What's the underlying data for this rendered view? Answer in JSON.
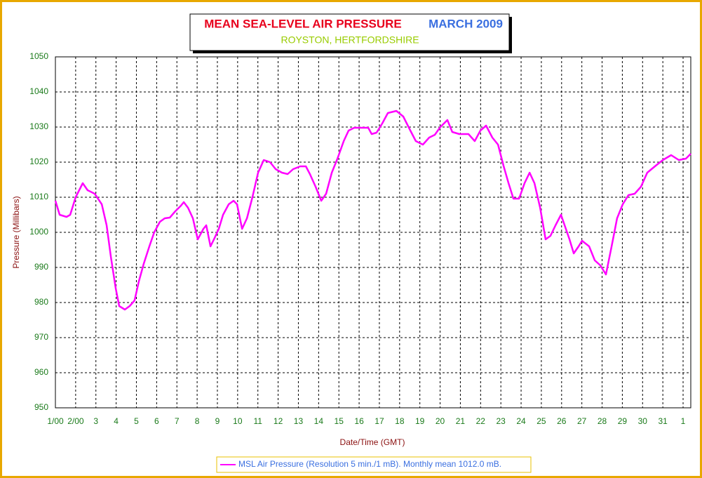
{
  "chart_data": {
    "type": "line",
    "title": "MEAN SEA-LEVEL AIR PRESSURE",
    "title_period": "MARCH 2009",
    "subtitle": "ROYSTON, HERTFORDSHIRE",
    "x_label": "Date/Time (GMT)",
    "y_label": "Pressure (Millibars)",
    "xlim": [
      1,
      32.38
    ],
    "ylim": [
      950,
      1050
    ],
    "xticks": [
      {
        "value": 1,
        "label": "1/00"
      },
      {
        "value": 2,
        "label": "2/00"
      },
      3,
      4,
      5,
      6,
      7,
      8,
      9,
      10,
      11,
      12,
      13,
      14,
      15,
      16,
      17,
      18,
      19,
      20,
      21,
      22,
      23,
      24,
      25,
      26,
      27,
      28,
      29,
      30,
      31,
      {
        "value": 32,
        "label": "1"
      }
    ],
    "yticks": [
      950,
      960,
      970,
      980,
      990,
      1000,
      1010,
      1020,
      1030,
      1040,
      1050
    ],
    "grid": true,
    "x": [
      1.0,
      1.21,
      1.55,
      1.73,
      2.0,
      2.35,
      2.59,
      2.94,
      3.29,
      3.53,
      3.74,
      3.98,
      4.15,
      4.43,
      4.67,
      4.91,
      5.12,
      5.36,
      5.64,
      5.88,
      6.16,
      6.4,
      6.65,
      6.92,
      7.2,
      7.34,
      7.55,
      7.79,
      8.03,
      8.31,
      8.45,
      8.66,
      8.83,
      9.07,
      9.28,
      9.56,
      9.8,
      9.97,
      10.22,
      10.46,
      10.73,
      11.01,
      11.29,
      11.6,
      11.88,
      12.19,
      12.47,
      12.74,
      13.09,
      13.37,
      13.57,
      13.85,
      14.13,
      14.37,
      14.65,
      14.93,
      15.24,
      15.48,
      15.76,
      16.1,
      16.45,
      16.62,
      16.86,
      17.14,
      17.42,
      17.84,
      18.18,
      18.53,
      18.8,
      19.15,
      19.46,
      19.74,
      20.01,
      20.36,
      20.6,
      20.95,
      21.4,
      21.71,
      21.99,
      22.27,
      22.58,
      22.86,
      23.13,
      23.38,
      23.62,
      23.9,
      24.17,
      24.42,
      24.66,
      24.94,
      25.21,
      25.45,
      25.7,
      25.97,
      26.15,
      26.39,
      26.6,
      26.84,
      27.01,
      27.36,
      27.64,
      27.91,
      28.19,
      28.47,
      28.74,
      29.02,
      29.3,
      29.61,
      29.92,
      30.23,
      30.65,
      31.0,
      31.41,
      31.79,
      32.14,
      32.38
    ],
    "series": [
      {
        "name": "MSL Air Pressure (Resolution 5 min./1 mB). Monthly mean 1012.0 mB.",
        "color": "#ff00ff",
        "values": [
          1009,
          1005,
          1004.4,
          1005,
          1010,
          1014,
          1012,
          1011,
          1008,
          1002,
          993,
          984,
          979,
          978,
          979,
          980.6,
          986,
          991,
          996,
          1000,
          1003,
          1004,
          1004.2,
          1006,
          1007.6,
          1008.6,
          1007,
          1004,
          998,
          1001,
          1002,
          996,
          998,
          1001,
          1005,
          1008,
          1009,
          1008,
          1001,
          1004,
          1010,
          1017,
          1020.6,
          1020,
          1018,
          1017,
          1016.6,
          1018,
          1018.8,
          1018.8,
          1016.6,
          1013,
          1009,
          1011,
          1017,
          1021,
          1026,
          1029,
          1029.8,
          1029.8,
          1029.8,
          1028,
          1028.4,
          1031,
          1034,
          1034.6,
          1033,
          1029,
          1026,
          1025,
          1027,
          1027.8,
          1030,
          1032,
          1028.6,
          1028,
          1028,
          1026,
          1029,
          1030.4,
          1027,
          1025,
          1019,
          1014,
          1009.6,
          1009.6,
          1014,
          1017,
          1014,
          1007,
          998,
          999,
          1002,
          1005,
          1002,
          998,
          994,
          996,
          997.6,
          996,
          992,
          990.6,
          988,
          996,
          1004,
          1008,
          1010.6,
          1011,
          1013,
          1017,
          1019,
          1020.6,
          1022,
          1020.6,
          1021,
          1022.4
        ]
      }
    ]
  }
}
